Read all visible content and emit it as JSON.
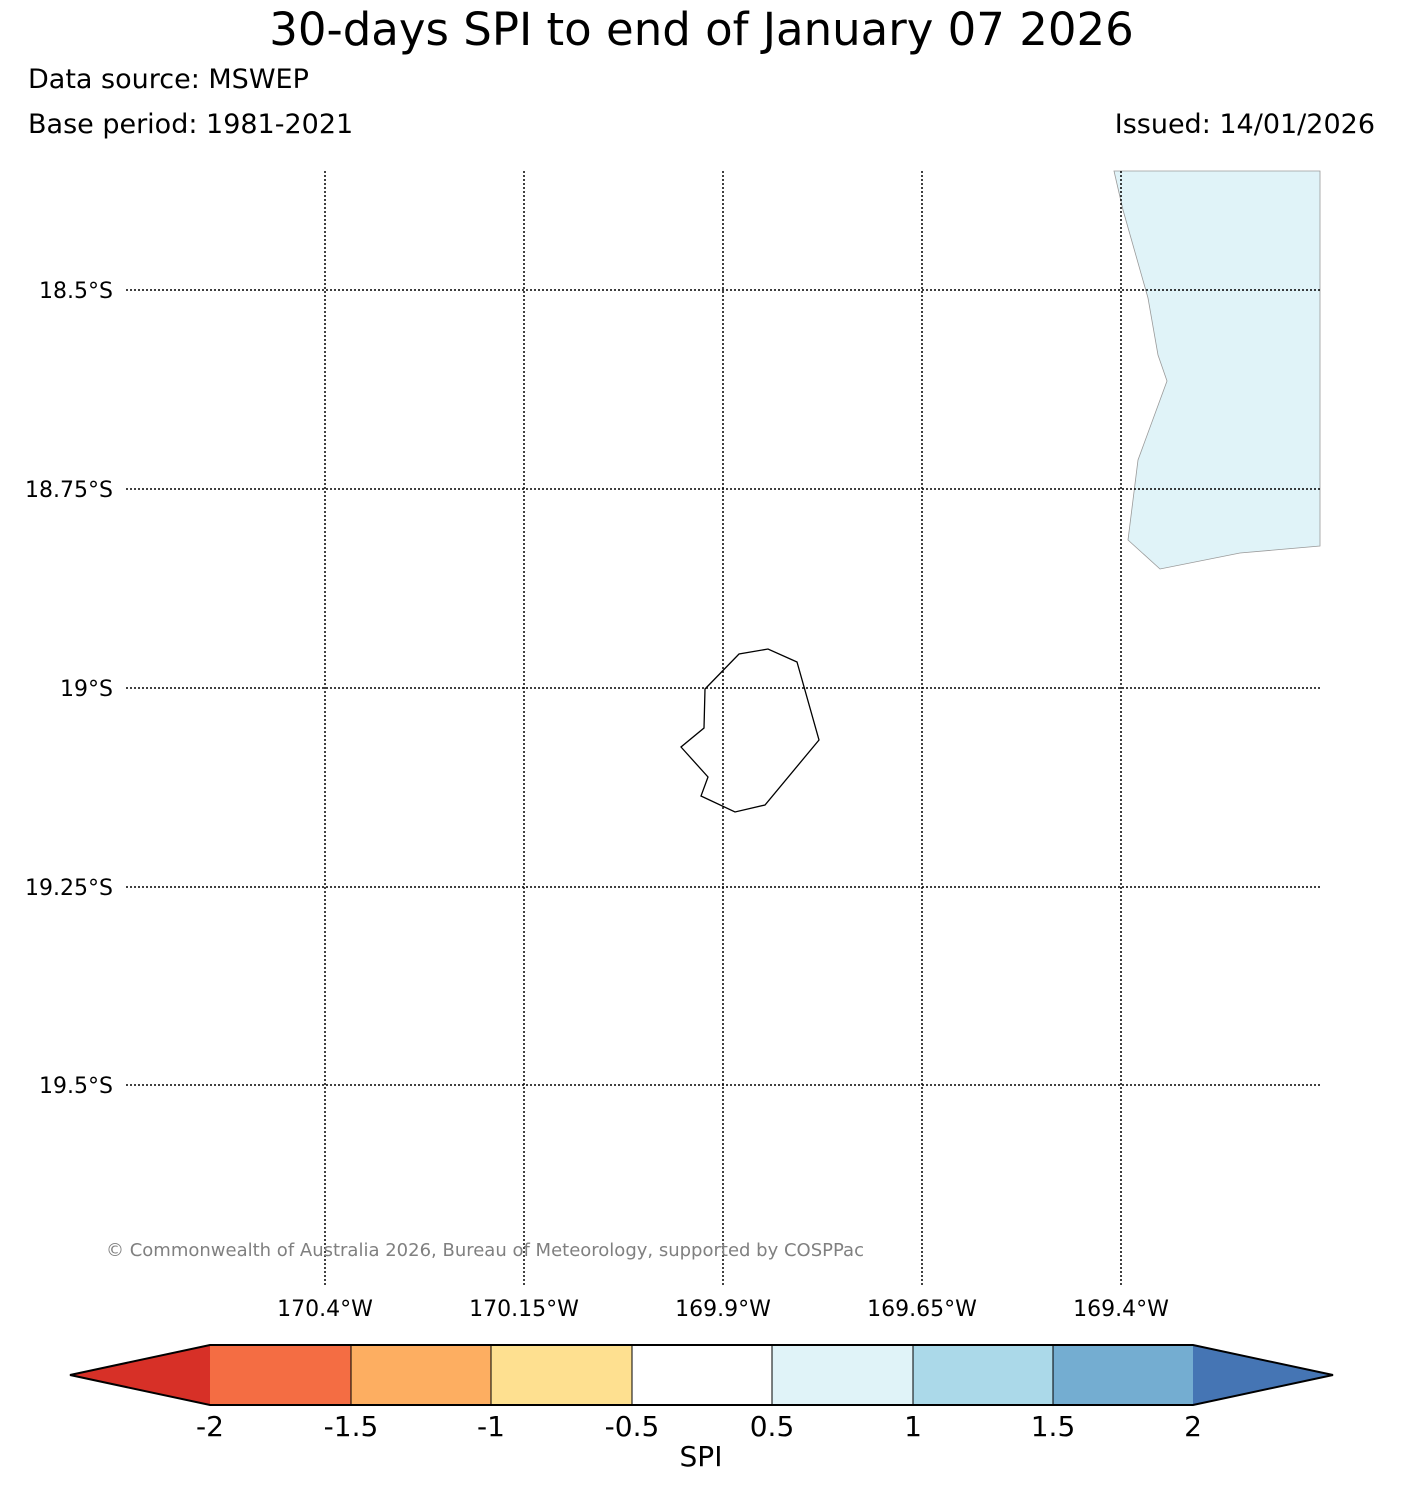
{
  "header": {
    "title": "30-days SPI to end of January 07 2026",
    "data_source": "Data source: MSWEP",
    "base_period": "Base period: 1981-2021",
    "issued": "Issued: 14/01/2026"
  },
  "map": {
    "lat_labels": [
      "18.5°S",
      "18.75°S",
      "19°S",
      "19.25°S",
      "19.5°S"
    ],
    "lon_labels": [
      "170.4°W",
      "170.15°W",
      "169.9°W",
      "169.65°W",
      "169.4°W"
    ],
    "copyright": "© Commonwealth of Australia 2026, Bureau of Meteorology, supported by COSPPac",
    "spi_shading_color": "#e0f3f8",
    "island_outline_icon": "island-coastline",
    "grid_style": "dotted"
  },
  "colorbar": {
    "label": "SPI",
    "ticks": [
      "-2",
      "-1.5",
      "-1",
      "-0.5",
      "0.5",
      "1",
      "1.5",
      "2"
    ],
    "colors": [
      "#d73027",
      "#f46d43",
      "#fdae61",
      "#fee090",
      "#ffffff",
      "#e0f3f8",
      "#abd9e9",
      "#74add1",
      "#4575b4"
    ]
  }
}
